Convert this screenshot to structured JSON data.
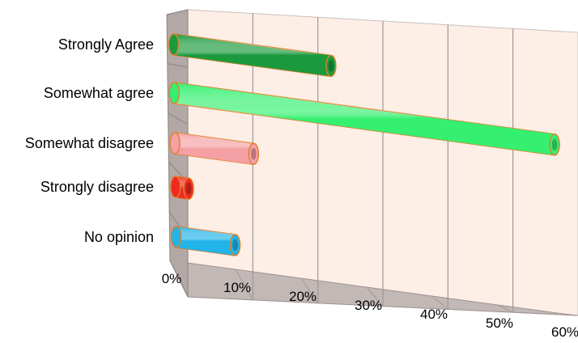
{
  "chart_data": {
    "type": "bar",
    "orientation": "horizontal",
    "style": "3d-cylinder",
    "categories": [
      "Strongly Agree",
      "Somewhat agree",
      "Somewhat disagree",
      "Strongly disagree",
      "No opinion"
    ],
    "values": [
      24,
      58,
      12,
      2,
      9
    ],
    "unit": "%",
    "xlim": [
      0,
      60
    ],
    "x_ticks": [
      "0%",
      "10%",
      "20%",
      "30%",
      "40%",
      "50%",
      "60%"
    ],
    "grid": true,
    "legend": "none",
    "title": "",
    "xlabel": "",
    "ylabel": "",
    "bar_colors": [
      "#1a9a3c",
      "#35f070",
      "#f5a0a4",
      "#f02a20",
      "#22b4e8"
    ],
    "bar_edge_color": "#e0802a",
    "wall_color": "#fdeee6",
    "side_wall_color": "#b3a8a6",
    "floor_color": "#c2b8b6",
    "gridline_color": "#9a9a9a"
  }
}
